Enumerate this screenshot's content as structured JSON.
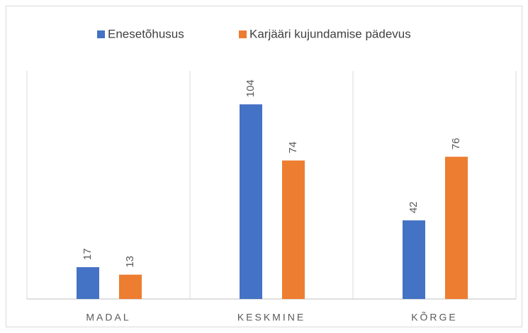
{
  "chart_data": {
    "type": "bar",
    "categories": [
      "MADAL",
      "KESKMINE",
      "KÕRGE"
    ],
    "series": [
      {
        "name": "Enesetõhusus",
        "color": "#4472c4",
        "values": [
          17,
          104,
          42
        ]
      },
      {
        "name": "Karjääri kujundamise pädevus",
        "color": "#ed7d31",
        "values": [
          13,
          74,
          76
        ]
      }
    ],
    "ylim": [
      0,
      120
    ],
    "legend": "top"
  }
}
